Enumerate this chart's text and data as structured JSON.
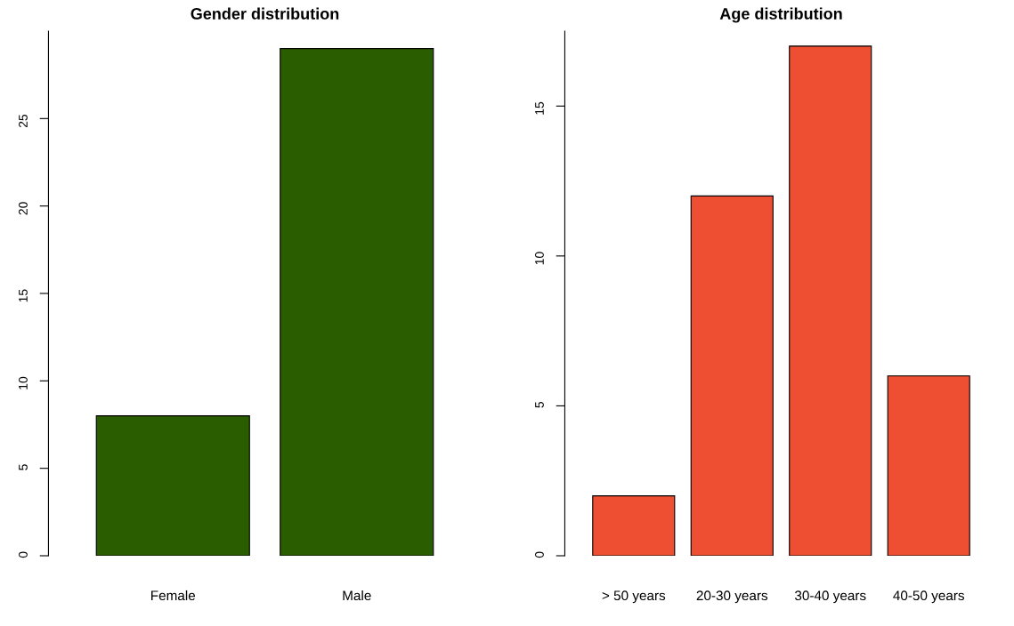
{
  "chart_data": [
    {
      "type": "bar",
      "title": "Gender distribution",
      "categories": [
        "Female",
        "Male"
      ],
      "values": [
        8,
        29
      ],
      "color": "#2a5c00",
      "ylim": [
        0,
        30
      ],
      "yticks": [
        0,
        5,
        10,
        15,
        20,
        25
      ],
      "grid": false,
      "legend": false
    },
    {
      "type": "bar",
      "title": "Age distribution",
      "categories": [
        "> 50 years",
        "20-30 years",
        "30-40 years",
        "40-50 years"
      ],
      "values": [
        2,
        12,
        17,
        6
      ],
      "color": "#ee4e31",
      "ylim": [
        0,
        17.5
      ],
      "yticks": [
        0,
        5,
        10,
        15
      ],
      "grid": false,
      "legend": false
    }
  ]
}
